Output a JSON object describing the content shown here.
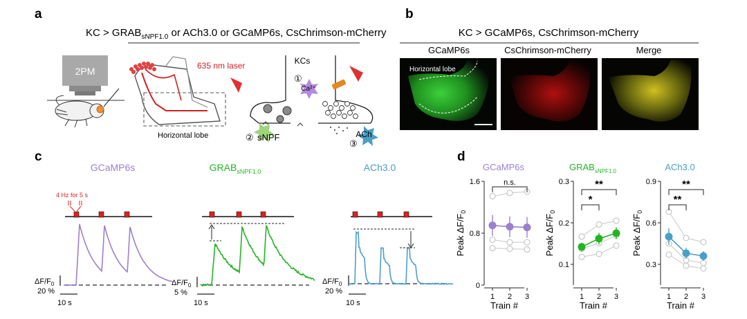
{
  "panels": {
    "a": {
      "letter": "a",
      "title_main": "KC > GRAB",
      "title_sub": "sNPF1.0",
      "title_rest": " or ACh3.0 or GCaMP6s, CsChrimson-mCherry",
      "microscope_label": "2PM",
      "laser_label": "635 nm laser",
      "lobe_label": "Horizontal lobe",
      "kcs_label": "KCs",
      "step1": "①",
      "ca_label": "Ca²⁺",
      "step2": "②",
      "snpf_label": "sNPF",
      "step3": "③",
      "ach_label": "ACh"
    },
    "b": {
      "letter": "b",
      "title": "KC > GCaMP6s, CsChrimson-mCherry",
      "image_titles": [
        "GCaMP6s",
        "CsChrimson-mCherry",
        "Merge"
      ],
      "lobe_label": "Horizontal lobe"
    },
    "c": {
      "letter": "c",
      "stim_label": "4 Hz for 5 s",
      "traces": [
        {
          "title": "GCaMP6s",
          "title_sub": "",
          "ylabel": "ΔF/F",
          "ylabel_sub": "0",
          "yscale": "20 %",
          "xscale": "10 s"
        },
        {
          "title": "GRAB",
          "title_sub": "sNPF1.0",
          "ylabel": "ΔF/F",
          "ylabel_sub": "0",
          "yscale": "5 %",
          "xscale": "10 s"
        },
        {
          "title": "ACh3.0",
          "title_sub": "",
          "ylabel": "ΔF/F",
          "ylabel_sub": "0",
          "yscale": "20 %",
          "xscale": "10 s"
        }
      ]
    },
    "d": {
      "letter": "d"
    }
  },
  "colors": {
    "gcamp": "#9b7fd0",
    "grab": "#22b422",
    "ach": "#4a9fc8",
    "laser_red": "#d42020",
    "stim_red": "#e02020",
    "sig": "#222222"
  },
  "chart_data": [
    {
      "type": "scatter",
      "title": "GCaMP6s",
      "title_sub": "",
      "xlabel": "Train #",
      "ylabel": "Peak ΔF/F",
      "ylabel_sub": "0",
      "categories": [
        "1",
        "2",
        "3"
      ],
      "yticks": [
        "0",
        "0.8",
        "1.6"
      ],
      "ylim": [
        0,
        1.6
      ],
      "mean": [
        0.92,
        0.9,
        0.89
      ],
      "err": [
        0.16,
        0.16,
        0.16
      ],
      "individual": [
        [
          1.37,
          1.42,
          1.44
        ],
        [
          0.7,
          0.66,
          0.66
        ],
        [
          0.57,
          0.56,
          0.55
        ]
      ],
      "significance": [
        {
          "from": 0,
          "to": 2,
          "label": "n.s."
        }
      ]
    },
    {
      "type": "scatter",
      "title": "GRAB",
      "title_sub": "sNPF1.0",
      "xlabel": "Train #",
      "ylabel": "Peak ΔF/F",
      "ylabel_sub": "0",
      "categories": [
        "1",
        "2",
        "3"
      ],
      "yticks": [
        "0.1",
        "0.2",
        "0.3"
      ],
      "ylim": [
        0.05,
        0.3
      ],
      "mean": [
        0.142,
        0.162,
        0.175
      ],
      "err": [
        0.01,
        0.014,
        0.014
      ],
      "individual": [
        [
          0.167,
          0.196,
          0.205
        ],
        [
          0.137,
          0.151,
          0.169
        ],
        [
          0.118,
          0.125,
          0.145
        ]
      ],
      "significance": [
        {
          "from": 0,
          "to": 1,
          "label": "*"
        },
        {
          "from": 0,
          "to": 2,
          "label": "**"
        }
      ]
    },
    {
      "type": "scatter",
      "title": "ACh3.0",
      "title_sub": "",
      "xlabel": "Train #",
      "ylabel": "Peak ΔF/F",
      "ylabel_sub": "0",
      "categories": [
        "1",
        "2",
        "3"
      ],
      "yticks": [
        "0.3",
        "0.6",
        "0.9"
      ],
      "ylim": [
        0.15,
        0.9
      ],
      "mean": [
        0.5,
        0.38,
        0.36
      ],
      "err": [
        0.06,
        0.04,
        0.035
      ],
      "individual": [
        [
          0.68,
          0.49,
          0.46
        ],
        [
          0.45,
          0.33,
          0.31
        ],
        [
          0.37,
          0.29,
          0.27
        ]
      ],
      "significance": [
        {
          "from": 0,
          "to": 1,
          "label": "**"
        },
        {
          "from": 0,
          "to": 2,
          "label": "**"
        }
      ]
    }
  ]
}
